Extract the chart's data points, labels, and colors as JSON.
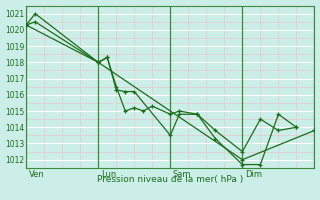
{
  "title": "Pression niveau de la mer( hPa )",
  "bg_color": "#cceee8",
  "line_color": "#1a6e1a",
  "ylim": [
    1011.5,
    1021.5
  ],
  "yticks": [
    1012,
    1013,
    1014,
    1015,
    1016,
    1017,
    1018,
    1019,
    1020,
    1021
  ],
  "xlim": [
    0,
    96
  ],
  "day_lines_x": [
    0,
    24,
    48,
    72,
    96
  ],
  "day_labels": [
    [
      "Ven",
      0
    ],
    [
      "Lun",
      24
    ],
    [
      "Sam",
      48
    ],
    [
      "Dim",
      72
    ]
  ],
  "series1": {
    "x": [
      0,
      3,
      24,
      27,
      30,
      33,
      36,
      48,
      51,
      57,
      63,
      72,
      78,
      84,
      90
    ],
    "y": [
      1020.3,
      1021.0,
      1018.0,
      1018.3,
      1016.3,
      1016.2,
      1016.2,
      1013.5,
      1014.8,
      1014.8,
      1013.3,
      1011.7,
      1011.7,
      1014.8,
      1014.0
    ]
  },
  "series2": {
    "x": [
      0,
      3,
      24,
      27,
      30,
      33,
      36,
      39,
      42,
      48,
      51,
      57,
      63,
      72,
      78,
      84,
      90
    ],
    "y": [
      1020.3,
      1020.5,
      1018.0,
      1018.3,
      1016.5,
      1015.0,
      1015.2,
      1015.0,
      1015.3,
      1014.8,
      1015.0,
      1014.8,
      1013.8,
      1012.5,
      1014.5,
      1013.8,
      1014.0
    ]
  },
  "series3": {
    "x": [
      0,
      24,
      72,
      96
    ],
    "y": [
      1020.3,
      1018.0,
      1012.0,
      1013.8
    ]
  }
}
